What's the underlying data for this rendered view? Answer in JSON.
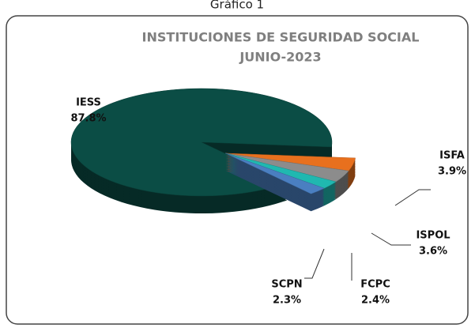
{
  "caption": "Gráfico 1",
  "chart_data": {
    "type": "pie",
    "title": "INSTITUCIONES DE SEGURIDAD SOCIAL",
    "subtitle": "JUNIO-2023",
    "categories": [
      "IESS",
      "ISFA",
      "ISPOL",
      "FCPC",
      "SCPN"
    ],
    "values": [
      87.8,
      3.9,
      3.6,
      2.4,
      2.3
    ],
    "value_labels": [
      "87.8%",
      "3.9%",
      "3.6%",
      "2.4%",
      "2.3%"
    ],
    "colors": [
      "#0b4d45",
      "#e8701e",
      "#8c8c8c",
      "#20b8b0",
      "#4a7fc1"
    ]
  }
}
